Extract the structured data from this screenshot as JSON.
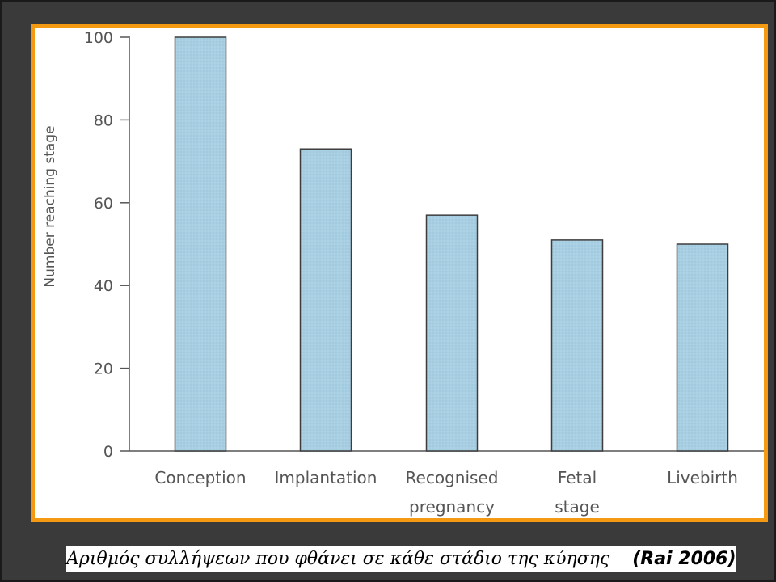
{
  "colors": {
    "frame_border": "#f39a12",
    "bar_fill": "#a9cfe3",
    "bar_stroke": "#3d3d3d",
    "axis": "#555555",
    "background": "#3a3a3a"
  },
  "chart_data": {
    "type": "bar",
    "ylabel": "Number reaching stage",
    "xlabel": "",
    "ylim": [
      0,
      100
    ],
    "yticks": [
      0,
      20,
      40,
      60,
      80,
      100
    ],
    "categories": [
      [
        "Conception"
      ],
      [
        "Implantation"
      ],
      [
        "Recognised",
        "pregnancy"
      ],
      [
        "Fetal",
        "stage"
      ],
      [
        "Livebirth"
      ]
    ],
    "values": [
      100,
      73,
      57,
      51,
      50
    ],
    "grid": false
  },
  "caption": {
    "text": "Αριθμός συλλήψεων που φθάνει σε κάθε στάδιο της κύησης",
    "citation": "(Rai 2006)"
  }
}
